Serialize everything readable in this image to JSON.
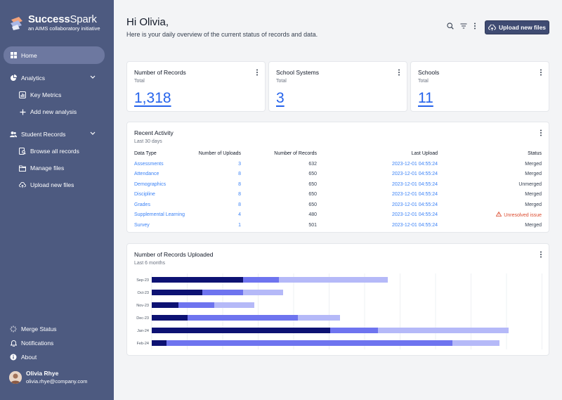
{
  "brand": {
    "name_bold": "Success",
    "name_rest": "Spark",
    "tagline": "an AIMS collaboratory initiative"
  },
  "sidebar": {
    "items": [
      {
        "label": "Home",
        "icon": "grid-icon"
      },
      {
        "label": "Analytics",
        "icon": "pie-chart-icon"
      },
      {
        "label": "Key Metrics",
        "icon": "chart-square-icon"
      },
      {
        "label": "Add new analysis",
        "icon": "plus-icon"
      },
      {
        "label": "Student Records",
        "icon": "users-icon"
      },
      {
        "label": "Browse all records",
        "icon": "document-search-icon"
      },
      {
        "label": "Manage files",
        "icon": "folder-icon"
      },
      {
        "label": "Upload new files",
        "icon": "cloud-upload-icon"
      }
    ],
    "bottom": [
      {
        "label": "Merge Status",
        "icon": "loader-icon"
      },
      {
        "label": "Notifications",
        "icon": "bell-icon"
      },
      {
        "label": "About",
        "icon": "info-icon"
      }
    ],
    "user": {
      "name": "Olivia Rhye",
      "email": "olivia.rhye@company.com"
    }
  },
  "header": {
    "greeting": "Hi Olivia,",
    "subtitle": "Here is your daily overview of the current status of records and data.",
    "upload_label": "Upload new files"
  },
  "stats": [
    {
      "title": "Number of Records",
      "sub": "Total",
      "value": "1,318"
    },
    {
      "title": "School Systems",
      "sub": "Total",
      "value": "3"
    },
    {
      "title": "Schools",
      "sub": "Total",
      "value": "11"
    }
  ],
  "activity": {
    "title": "Recent Activity",
    "sub": "Last 30 days",
    "columns": [
      "Data Type",
      "Number of Uploads",
      "Number of Records",
      "Last Upload",
      "Status"
    ],
    "rows": [
      [
        "Assessments",
        "3",
        "632",
        "2023-12-01 04:55:24",
        "Merged"
      ],
      [
        "Attendance",
        "8",
        "650",
        "2023-12-01 04:55:24",
        "Merged"
      ],
      [
        "Demographics",
        "8",
        "650",
        "2023-12-01 04:55:24",
        "Unmerged"
      ],
      [
        "Discipline",
        "8",
        "650",
        "2023-12-01 04:55:24",
        "Merged"
      ],
      [
        "Grades",
        "8",
        "650",
        "2023-12-01 04:55:24",
        "Merged"
      ],
      [
        "Supplemental Learning",
        "4",
        "480",
        "2023-12-01 04:55:24",
        "Unresolved issue"
      ],
      [
        "Survey",
        "1",
        "501",
        "2023-12-01 04:55:24",
        "Merged"
      ]
    ]
  },
  "uploads_chart": {
    "title": "Number of Records Uploaded",
    "sub": "Last 6 months"
  },
  "chart_data": {
    "type": "bar",
    "orientation": "horizontal",
    "stacked": true,
    "categories": [
      "Sep-23",
      "Oct-23",
      "Nov-23",
      "Dec-23",
      "Jan-24",
      "Feb-24"
    ],
    "series": [
      {
        "color": "#0d1273",
        "values": [
          130,
          72,
          38,
          51,
          254,
          21
        ]
      },
      {
        "color": "#6e74ef",
        "values": [
          51,
          58,
          51,
          157,
          68,
          407
        ]
      },
      {
        "color": "#b5b9f8",
        "values": [
          155,
          57,
          57,
          60,
          186,
          67
        ]
      }
    ],
    "xlim": [
      0,
      560
    ],
    "grid": true
  },
  "colors": {
    "sidebar": "#4d5a80",
    "accent": "#2563eb",
    "button": "#3f4b72"
  }
}
